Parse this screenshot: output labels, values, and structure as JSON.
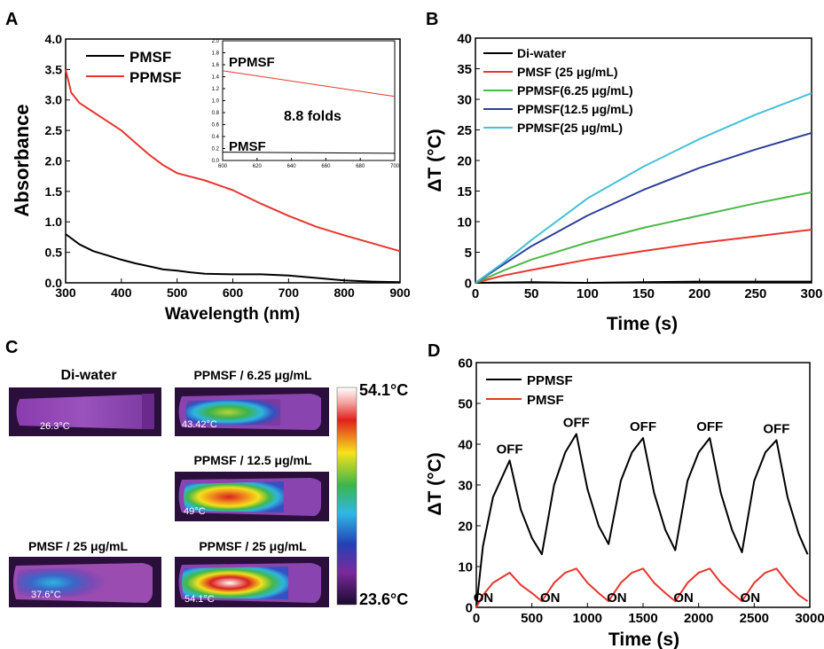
{
  "chart_data": [
    {
      "panel_letter": "A",
      "type": "line",
      "xlabel": "Wavelength (nm)",
      "ylabel": "Absorbance",
      "xlim": [
        300,
        900
      ],
      "ylim": [
        0,
        4.0
      ],
      "x_ticks": [
        300,
        400,
        500,
        600,
        700,
        800,
        900
      ],
      "y_ticks": [
        0.0,
        0.5,
        1.0,
        1.5,
        2.0,
        2.5,
        3.0,
        3.5,
        4.0
      ],
      "legend_position": "top-left",
      "series": [
        {
          "name": "PMSF",
          "color": "#000000",
          "x": [
            300,
            325,
            350,
            375,
            400,
            425,
            450,
            475,
            500,
            525,
            550,
            600,
            650,
            700,
            750,
            800,
            850,
            900
          ],
          "y": [
            0.8,
            0.63,
            0.52,
            0.45,
            0.38,
            0.32,
            0.27,
            0.22,
            0.2,
            0.17,
            0.15,
            0.14,
            0.14,
            0.12,
            0.08,
            0.04,
            0.02,
            0.01
          ]
        },
        {
          "name": "PPMSF",
          "color": "#e8352d",
          "x": [
            300,
            310,
            325,
            350,
            375,
            400,
            425,
            450,
            475,
            500,
            550,
            600,
            650,
            700,
            750,
            800,
            850,
            900
          ],
          "y": [
            3.5,
            3.12,
            2.95,
            2.8,
            2.65,
            2.5,
            2.3,
            2.1,
            1.93,
            1.8,
            1.68,
            1.52,
            1.3,
            1.1,
            0.92,
            0.78,
            0.65,
            0.52
          ]
        }
      ],
      "inset": {
        "xlim": [
          600,
          700
        ],
        "ylim": [
          0,
          2.0
        ],
        "x_ticks": [
          600,
          620,
          640,
          660,
          680,
          700
        ],
        "y_ticks": [
          0.0,
          0.2,
          0.4,
          0.6,
          0.8,
          1.0,
          1.2,
          1.4,
          1.6,
          1.8,
          2.0
        ],
        "annotation": "8.8 folds",
        "labels": [
          "PPMSF",
          "PMSF"
        ],
        "series": [
          {
            "name": "PPMSF",
            "color": "#e8352d",
            "x": [
              600,
              700
            ],
            "y": [
              1.5,
              1.07
            ]
          },
          {
            "name": "PMSF",
            "color": "#000000",
            "x": [
              600,
              700
            ],
            "y": [
              0.14,
              0.12
            ]
          }
        ]
      }
    },
    {
      "panel_letter": "B",
      "type": "line",
      "xlabel": "Time (s)",
      "ylabel": "ΔT (°C)",
      "xlim": [
        0,
        300
      ],
      "ylim": [
        0,
        40
      ],
      "x_ticks": [
        0,
        50,
        100,
        150,
        200,
        250,
        300
      ],
      "y_ticks": [
        0,
        5,
        10,
        15,
        20,
        25,
        30,
        35,
        40
      ],
      "legend_position": "top-left",
      "series": [
        {
          "name": "Di-water",
          "color": "#000000",
          "x": [
            0,
            50,
            100,
            150,
            200,
            250,
            300
          ],
          "y": [
            0,
            0.1,
            0,
            0.1,
            0.2,
            0.2,
            0.2
          ]
        },
        {
          "name": "PMSF (25 μg/mL)",
          "color": "#e8352d",
          "x": [
            0,
            25,
            50,
            100,
            150,
            200,
            250,
            300
          ],
          "y": [
            0,
            1.2,
            2.1,
            3.8,
            5.2,
            6.5,
            7.6,
            8.7
          ]
        },
        {
          "name": "PPMSF(6.25 μg/mL)",
          "color": "#4cb848",
          "x": [
            0,
            25,
            50,
            100,
            150,
            200,
            250,
            300
          ],
          "y": [
            0,
            2.0,
            3.8,
            6.6,
            9.0,
            11.0,
            13.0,
            14.8
          ]
        },
        {
          "name": "PPMSF(12.5 μg/mL)",
          "color": "#2e3f98",
          "x": [
            0,
            25,
            50,
            100,
            150,
            200,
            250,
            300
          ],
          "y": [
            0,
            3.0,
            6.0,
            11.0,
            15.2,
            18.8,
            21.8,
            24.5
          ]
        },
        {
          "name": "PPMSF(25 μg/mL)",
          "color": "#45c0d8",
          "x": [
            0,
            25,
            50,
            100,
            150,
            200,
            250,
            300
          ],
          "y": [
            0,
            3.3,
            7.0,
            13.8,
            19.0,
            23.5,
            27.5,
            31.0
          ]
        }
      ]
    },
    {
      "panel_letter": "D",
      "type": "line",
      "xlabel": "Time (s)",
      "ylabel": "ΔT (°C)",
      "xlim": [
        0,
        3000
      ],
      "ylim": [
        0,
        60
      ],
      "x_ticks": [
        0,
        500,
        1000,
        1500,
        2000,
        2500,
        3000
      ],
      "y_ticks": [
        0,
        10,
        20,
        30,
        40,
        50,
        60
      ],
      "legend_position": "top-left",
      "series": [
        {
          "name": "PPMSF",
          "color": "#000000",
          "x": [
            0,
            60,
            150,
            300,
            400,
            500,
            590,
            700,
            800,
            900,
            1000,
            1100,
            1190,
            1300,
            1400,
            1500,
            1600,
            1700,
            1790,
            1900,
            2000,
            2100,
            2200,
            2300,
            2390,
            2500,
            2600,
            2700,
            2800,
            2900,
            2980
          ],
          "y": [
            0,
            15,
            27,
            36,
            24,
            17,
            13,
            30,
            38,
            42.5,
            29,
            20,
            15.5,
            31,
            38,
            41.5,
            28,
            19,
            14,
            31,
            38,
            41.5,
            28,
            19,
            13.5,
            31,
            38,
            41,
            27,
            18,
            13
          ]
        },
        {
          "name": "PMSF",
          "color": "#e8352d",
          "x": [
            0,
            60,
            150,
            300,
            400,
            500,
            590,
            700,
            800,
            900,
            1000,
            1100,
            1190,
            1300,
            1400,
            1500,
            1600,
            1700,
            1790,
            1900,
            2000,
            2100,
            2200,
            2300,
            2390,
            2500,
            2600,
            2700,
            2800,
            2900,
            2980
          ],
          "y": [
            0,
            3,
            6,
            8.5,
            5.5,
            3.5,
            1.5,
            6,
            8.5,
            9.5,
            6,
            3.5,
            1.5,
            6,
            8.5,
            9.5,
            6,
            3.5,
            1.5,
            6,
            8.5,
            9.5,
            6,
            3.5,
            1.5,
            6,
            8.5,
            9.5,
            6,
            3,
            1.5
          ]
        }
      ],
      "annotations": {
        "off": {
          "label": "OFF",
          "x": [
            300,
            900,
            1500,
            2100,
            2700
          ],
          "y": [
            36,
            42.5,
            41.5,
            41.5,
            41
          ]
        },
        "on": {
          "label": "ON",
          "x": [
            0,
            600,
            1200,
            1800,
            2400
          ]
        }
      }
    }
  ],
  "panel_c": {
    "panel_letter": "C",
    "colorbar": {
      "max_label": "54.1°C",
      "min_label": "23.6°C"
    },
    "thermal_images": [
      {
        "title": "Di-water",
        "temp": "26.3°C"
      },
      {
        "title": "PPMSF / 6.25 μg/mL",
        "temp": "43.42°C"
      },
      {
        "title": "PPMSF / 12.5 μg/mL",
        "temp": "49°C"
      },
      {
        "title": "PMSF / 25 μg/mL",
        "temp": "37.6°C"
      },
      {
        "title": "PPMSF / 25 μg/mL",
        "temp": "54.1°C"
      }
    ]
  }
}
